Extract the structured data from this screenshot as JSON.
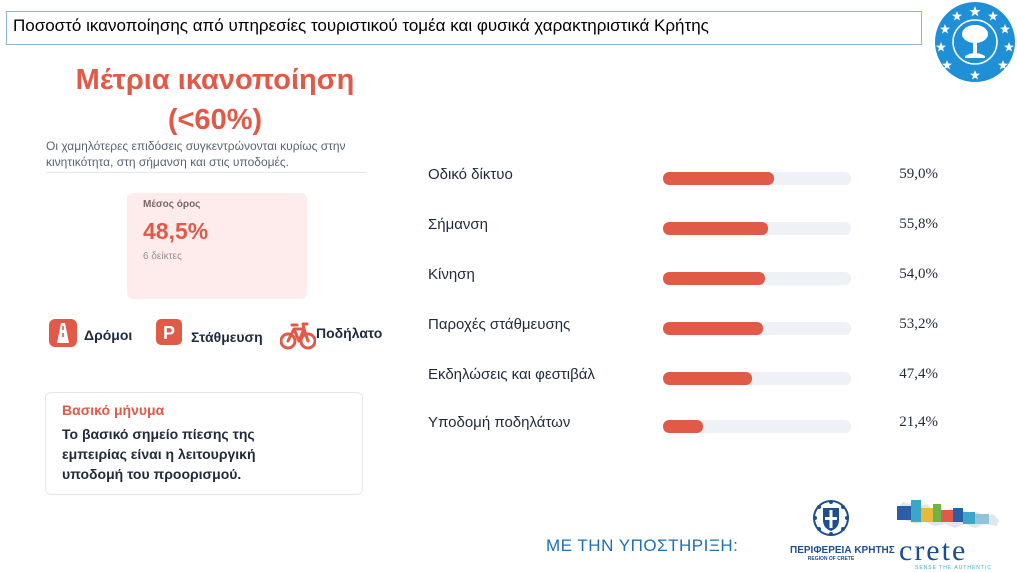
{
  "header": {
    "title": "Ποσοστό ικανοποίησης από υπηρεσίες τουριστικού τομέα και φυσικά χαρακτηριστικά Κρήτης",
    "emblem_icon": "olive-tree-stars-emblem-icon"
  },
  "summary": {
    "headline_line1": "Μέτρια ικανοποίηση",
    "headline_line2": "(<60%)",
    "description": "Οι χαμηλότερες επιδόσεις συγκεντρώνονται κυρίως στην κινητικότητα, στη σήμανση και στις υποδομές.",
    "average": {
      "label": "Μέσος όρος",
      "value": "48,5%",
      "sub": "6 δείκτες"
    }
  },
  "categories": [
    {
      "label": "Δρόμοι",
      "icon": "road-icon"
    },
    {
      "label": "Στάθμευση",
      "icon": "parking-icon"
    },
    {
      "label": "Ποδήλατο",
      "icon": "bicycle-icon"
    }
  ],
  "message": {
    "title": "Βασικό μήνυμα",
    "body": "Το βασικό σημείο πίεσης της εμπειρίας είναι η λειτουργική υποδομή του προορισμού."
  },
  "chart_data": {
    "type": "bar",
    "orientation": "horizontal",
    "categories": [
      "Οδικό δίκτυο",
      "Σήμανση",
      "Κίνηση",
      "Παροχές στάθμευσης",
      "Εκδηλώσεις και φεστιβάλ",
      "Υποδομή ποδηλάτων"
    ],
    "values": [
      59.0,
      55.8,
      54.0,
      53.2,
      47.4,
      21.4
    ],
    "value_labels": [
      "59,0%",
      "55,8%",
      "54,0%",
      "53,2%",
      "47,4%",
      "21,4%"
    ],
    "xlim": [
      0,
      100
    ],
    "bar_color": "#e05a47",
    "track_color": "#eef1f5"
  },
  "footer": {
    "support_text": "ΜΕ ΤΗΝ ΥΠΟΣΤΗΡΙΞΗ:",
    "region_name": "ΠΕΡΙΦΕΡΕΙΑ ΚΡΗΤΗΣ",
    "region_sub": "REGION OF CRETE",
    "crete_word": "crete",
    "crete_tag": "SENSE THE AUTHENTIC"
  },
  "colors": {
    "accent": "#e05a47",
    "card_background": "#fdeceb",
    "brand_blue": "#1d6fb8"
  }
}
